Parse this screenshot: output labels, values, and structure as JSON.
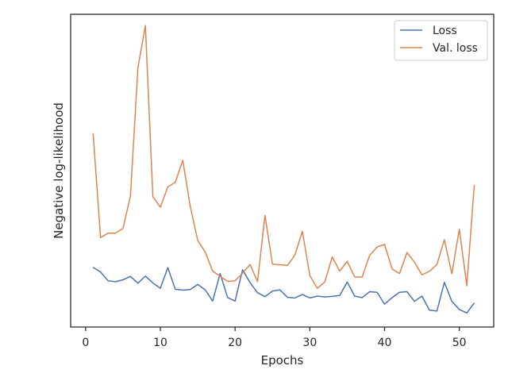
{
  "chart_data": {
    "type": "line",
    "title": "",
    "xlabel": "Epochs",
    "ylabel": "Negative log-likelihood",
    "xlim": [
      -2.0,
      54.6
    ],
    "ylim": [
      0.0,
      1.0
    ],
    "y_tick_labels_shown": false,
    "x_ticks": [
      0,
      10,
      20,
      30,
      40,
      50
    ],
    "x_tick_labels": [
      "0",
      "10",
      "20",
      "30",
      "40",
      "50"
    ],
    "legend_position": "top-right",
    "grid": false,
    "x": [
      1,
      2,
      3,
      4,
      5,
      6,
      7,
      8,
      9,
      10,
      11,
      12,
      13,
      14,
      15,
      16,
      17,
      18,
      19,
      20,
      21,
      22,
      23,
      24,
      25,
      26,
      27,
      28,
      29,
      30,
      31,
      32,
      33,
      34,
      35,
      36,
      37,
      38,
      39,
      40,
      41,
      42,
      43,
      44,
      45,
      46,
      47,
      48,
      49,
      50,
      51,
      52
    ],
    "series": [
      {
        "name": "Loss",
        "color": "#4c72b0",
        "values": [
          0.191,
          0.176,
          0.148,
          0.145,
          0.151,
          0.162,
          0.14,
          0.163,
          0.141,
          0.124,
          0.19,
          0.121,
          0.118,
          0.12,
          0.136,
          0.119,
          0.083,
          0.171,
          0.094,
          0.083,
          0.183,
          0.142,
          0.11,
          0.097,
          0.115,
          0.119,
          0.095,
          0.093,
          0.104,
          0.093,
          0.099,
          0.096,
          0.098,
          0.101,
          0.144,
          0.099,
          0.094,
          0.113,
          0.111,
          0.073,
          0.094,
          0.111,
          0.113,
          0.082,
          0.099,
          0.054,
          0.051,
          0.143,
          0.082,
          0.056,
          0.045,
          0.077
        ]
      },
      {
        "name": "Val. loss",
        "color": "#dd8452",
        "values": [
          0.62,
          0.286,
          0.3,
          0.3,
          0.315,
          0.419,
          0.829,
          0.964,
          0.417,
          0.383,
          0.448,
          0.463,
          0.533,
          0.386,
          0.277,
          0.24,
          0.179,
          0.162,
          0.146,
          0.148,
          0.172,
          0.2,
          0.145,
          0.357,
          0.201,
          0.199,
          0.197,
          0.23,
          0.306,
          0.165,
          0.124,
          0.144,
          0.224,
          0.179,
          0.21,
          0.16,
          0.16,
          0.229,
          0.256,
          0.264,
          0.186,
          0.171,
          0.238,
          0.207,
          0.167,
          0.178,
          0.2,
          0.279,
          0.17,
          0.313,
          0.132,
          0.454
        ]
      }
    ]
  }
}
